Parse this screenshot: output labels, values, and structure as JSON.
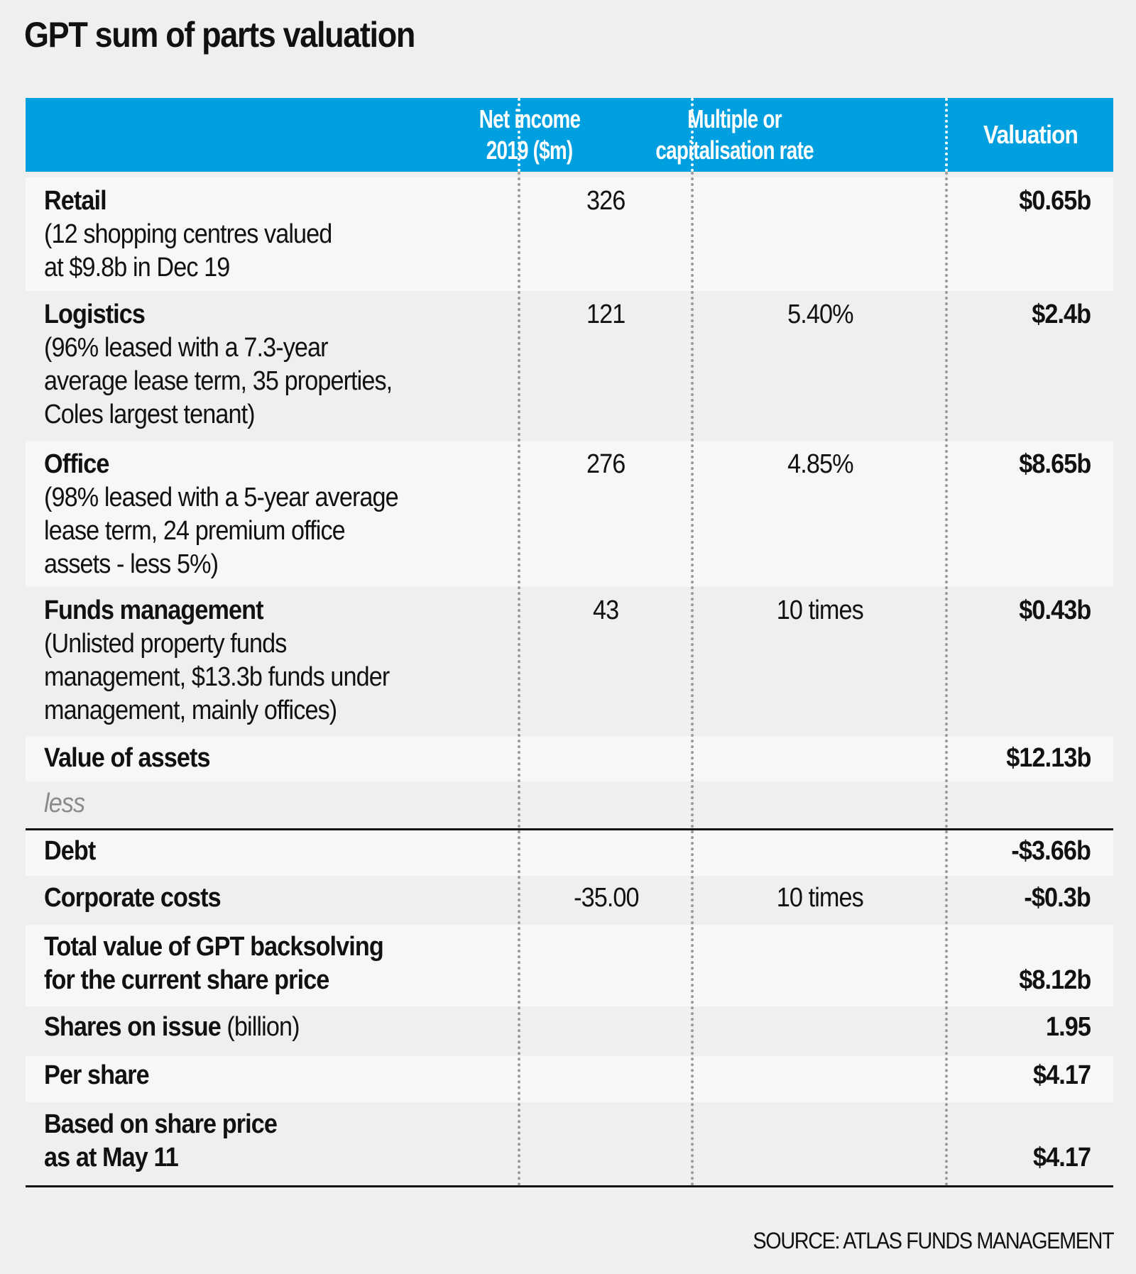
{
  "title": "GPT sum of parts valuation",
  "header": {
    "label": "",
    "net_income": "Net income 2019 ($m)",
    "net_income_line1": "Net income",
    "net_income_line2": "2019 ($m)",
    "multiple_line1": "Multiple or",
    "multiple_line2": "capitalisation rate",
    "valuation": "Valuation"
  },
  "rows": [
    {
      "label": "Retail",
      "desc_lines": [
        "(12 shopping centres valued",
        "at $9.8b in Dec 19"
      ],
      "net_income": "326",
      "multiple": "",
      "valuation": "$0.65b"
    },
    {
      "label": "Logistics",
      "desc_lines": [
        "(96% leased with a 7.3-year",
        "average lease term, 35 properties,",
        "Coles largest tenant)"
      ],
      "net_income": "121",
      "multiple": "5.40%",
      "valuation": "$2.4b"
    },
    {
      "label": "Office",
      "desc_lines": [
        "(98% leased with a 5-year average",
        "lease term, 24 premium office",
        "assets - less 5%)"
      ],
      "net_income": "276",
      "multiple": "4.85%",
      "valuation": "$8.65b"
    },
    {
      "label": "Funds management",
      "desc_lines": [
        "(Unlisted property funds",
        "management, $13.3b funds under",
        "management, mainly offices)"
      ],
      "net_income": "43",
      "multiple": "10 times",
      "valuation": "$0.43b"
    },
    {
      "label": "Value of assets",
      "net_income": "",
      "multiple": "",
      "valuation": "$12.13b"
    },
    {
      "label": "less",
      "net_income": "",
      "multiple": "",
      "valuation": ""
    },
    {
      "label": "Debt",
      "net_income": "",
      "multiple": "",
      "valuation": "-$3.66b"
    },
    {
      "label": "Corporate costs",
      "net_income": "-35.00",
      "multiple": "10 times",
      "valuation": "-$0.3b"
    },
    {
      "label_lines": [
        "Total value of GPT backsolving",
        "for the current share price"
      ],
      "net_income": "",
      "multiple": "",
      "valuation": "$8.12b"
    },
    {
      "label": "Shares on issue",
      "label_unit": "(billion)",
      "net_income": "",
      "multiple": "",
      "valuation": "1.95"
    },
    {
      "label": "Per share",
      "net_income": "",
      "multiple": "",
      "valuation": "$4.17"
    },
    {
      "label_lines": [
        "Based on share price",
        "as at May 11"
      ],
      "net_income": "",
      "multiple": "",
      "valuation": "$4.17"
    }
  ],
  "source": "SOURCE: ATLAS FUNDS MANAGEMENT",
  "colors": {
    "header_bg": "#00A0E0",
    "row_light": "#F7F7F7",
    "row_dark": "#EFEFEF",
    "less_text": "#8A8A8A"
  }
}
